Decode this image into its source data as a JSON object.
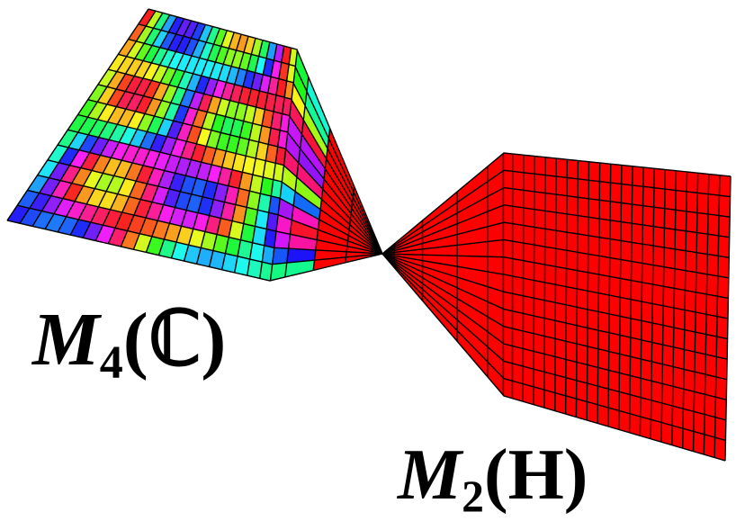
{
  "labels": {
    "left": {
      "symbol": "M",
      "subscript": "4",
      "field": "(ℂ)"
    },
    "right": {
      "symbol": "M",
      "subscript": "2",
      "field": "(H)"
    }
  },
  "colors": {
    "right_surface": "#ff0000",
    "grid_lines": "#000000",
    "background": "#ffffff"
  }
}
